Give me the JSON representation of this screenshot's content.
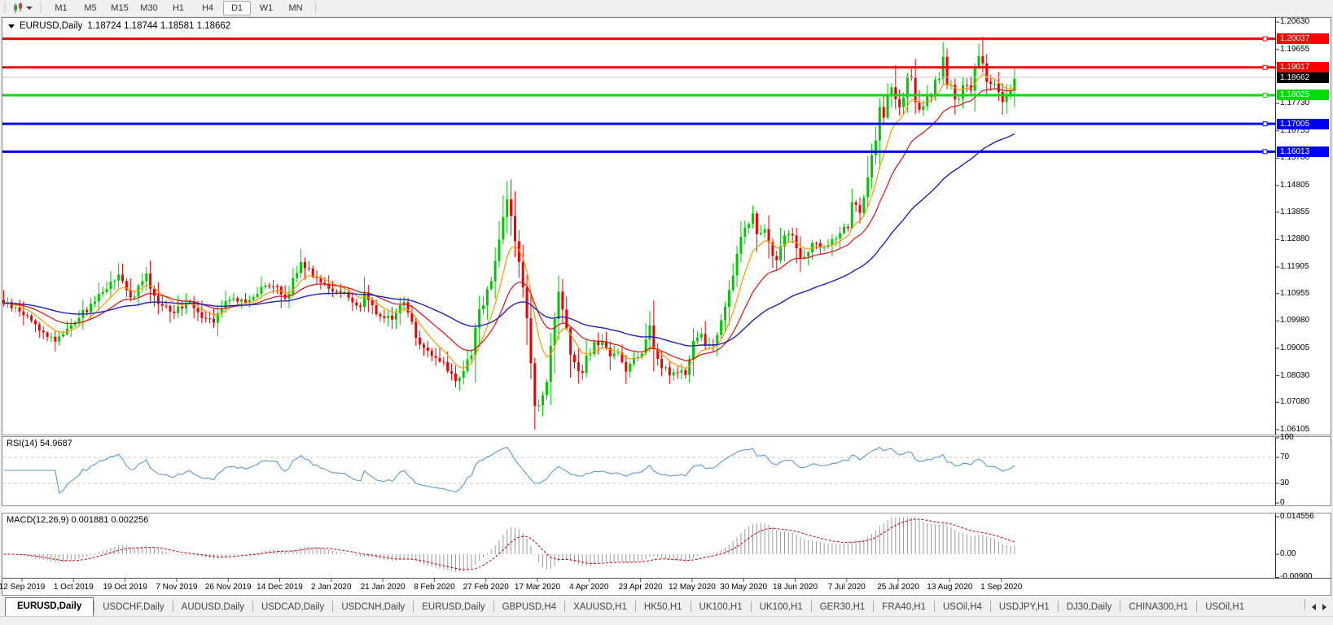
{
  "toolbar": {
    "timeframes": [
      {
        "label": "M1",
        "active": false
      },
      {
        "label": "M5",
        "active": false
      },
      {
        "label": "M15",
        "active": false
      },
      {
        "label": "M30",
        "active": false
      },
      {
        "label": "H1",
        "active": false
      },
      {
        "label": "H4",
        "active": false
      },
      {
        "label": "D1",
        "active": true
      },
      {
        "label": "W1",
        "active": false
      },
      {
        "label": "MN",
        "active": false
      }
    ]
  },
  "chart": {
    "symbol_title": "EURUSD,Daily",
    "ohlc_text": "1.18724 1.18744 1.18581 1.18662",
    "rsi_title": "RSI(14) 54.9687",
    "macd_title": "MACD(12,26,9) 0.001881 0.002256"
  },
  "chart_data": {
    "type": "candlestick",
    "symbol": "EURUSD",
    "timeframe": "Daily",
    "ohlc_display": {
      "open": "1.18724",
      "high": "1.18744",
      "low": "1.18581",
      "close": "1.18662"
    },
    "ylim": [
      1.06105,
      1.2063
    ],
    "price_axis_ticks": [
      {
        "label": "1.20630",
        "price": 1.2063
      },
      {
        "label": "1.19655",
        "price": 1.19655
      },
      {
        "label": "1.17730",
        "price": 1.1773
      },
      {
        "label": "1.16755",
        "price": 1.16755
      },
      {
        "label": "1.15780",
        "price": 1.1578
      },
      {
        "label": "1.14805",
        "price": 1.14805
      },
      {
        "label": "1.13855",
        "price": 1.13855
      },
      {
        "label": "1.12880",
        "price": 1.1288
      },
      {
        "label": "1.11905",
        "price": 1.11905
      },
      {
        "label": "1.10955",
        "price": 1.10955
      },
      {
        "label": "1.09980",
        "price": 1.0998
      },
      {
        "label": "1.09005",
        "price": 1.09005
      },
      {
        "label": "1.08030",
        "price": 1.0803
      },
      {
        "label": "1.07080",
        "price": 1.0708
      },
      {
        "label": "1.06105",
        "price": 1.06105
      }
    ],
    "horizontal_lines": [
      {
        "label": "1.20037",
        "price": 1.20037,
        "color_key": "red_line"
      },
      {
        "label": "1.19017",
        "price": 1.19017,
        "color_key": "red_line"
      },
      {
        "label": "1.18025",
        "price": 1.18025,
        "color_key": "green_line"
      },
      {
        "label": "1.17005",
        "price": 1.17005,
        "color_key": "blue_line"
      },
      {
        "label": "1.16013",
        "price": 1.16013,
        "color_key": "blue_line"
      }
    ],
    "current_price": {
      "label": "1.18662",
      "price": 1.18662
    },
    "x_labels": [
      "12 Sep 2019",
      "1 Oct 2019",
      "19 Oct 2019",
      "7 Nov 2019",
      "26 Nov 2019",
      "14 Dec 2019",
      "2 Jan 2020",
      "21 Jan 2020",
      "8 Feb 2020",
      "27 Feb 2020",
      "17 Mar 2020",
      "4 Apr 2020",
      "23 Apr 2020",
      "12 May 2020",
      "30 May 2020",
      "18 Jun 2020",
      "7 Jul 2020",
      "25 Jul 2020",
      "13 Aug 2020",
      "1 Sep 2020"
    ],
    "bars_per_label_interval": 13,
    "num_bars": 256,
    "close_anchors": [
      [
        0,
        1.1065
      ],
      [
        6,
        1.1015
      ],
      [
        10,
        1.0955
      ],
      [
        13,
        1.093
      ],
      [
        17,
        1.0985
      ],
      [
        21,
        1.104
      ],
      [
        26,
        1.112
      ],
      [
        29,
        1.1155
      ],
      [
        32,
        1.108
      ],
      [
        36,
        1.115
      ],
      [
        39,
        1.1065
      ],
      [
        43,
        1.103
      ],
      [
        47,
        1.1075
      ],
      [
        50,
        1.1015
      ],
      [
        53,
        1.1005
      ],
      [
        57,
        1.108
      ],
      [
        61,
        1.1065
      ],
      [
        65,
        1.1115
      ],
      [
        68,
        1.1125
      ],
      [
        71,
        1.108
      ],
      [
        75,
        1.121
      ],
      [
        78,
        1.1165
      ],
      [
        82,
        1.1115
      ],
      [
        86,
        1.1095
      ],
      [
        89,
        1.1035
      ],
      [
        91,
        1.1095
      ],
      [
        94,
        1.1025
      ],
      [
        98,
        1.1005
      ],
      [
        101,
        1.1075
      ],
      [
        104,
        1.0945
      ],
      [
        108,
        1.087
      ],
      [
        111,
        1.084
      ],
      [
        114,
        1.079
      ],
      [
        116,
        1.081
      ],
      [
        118,
        1.0885
      ],
      [
        120,
        1.1035
      ],
      [
        123,
        1.1135
      ],
      [
        125,
        1.1285
      ],
      [
        127,
        1.145
      ],
      [
        128,
        1.138
      ],
      [
        129,
        1.1284
      ],
      [
        131,
        1.11
      ],
      [
        132,
        1.0995
      ],
      [
        133,
        1.086
      ],
      [
        134,
        1.069
      ],
      [
        136,
        1.073
      ],
      [
        137,
        1.079
      ],
      [
        138,
        1.089
      ],
      [
        140,
        1.109
      ],
      [
        141,
        1.103
      ],
      [
        143,
        1.088
      ],
      [
        145,
        1.08
      ],
      [
        147,
        1.086
      ],
      [
        149,
        1.092
      ],
      [
        151,
        1.0915
      ],
      [
        153,
        1.087
      ],
      [
        155,
        1.089
      ],
      [
        157,
        1.0822
      ],
      [
        159,
        1.087
      ],
      [
        161,
        1.088
      ],
      [
        163,
        1.098
      ],
      [
        164,
        1.09
      ],
      [
        166,
        1.084
      ],
      [
        168,
        1.0805
      ],
      [
        170,
        1.0815
      ],
      [
        172,
        1.082
      ],
      [
        174,
        1.092
      ],
      [
        176,
        1.095
      ],
      [
        178,
        1.09
      ],
      [
        180,
        1.095
      ],
      [
        181,
        1.1
      ],
      [
        183,
        1.11
      ],
      [
        185,
        1.123
      ],
      [
        187,
        1.1337
      ],
      [
        189,
        1.1373
      ],
      [
        190,
        1.1301
      ],
      [
        192,
        1.1324
      ],
      [
        194,
        1.1243
      ],
      [
        195,
        1.1206
      ],
      [
        197,
        1.1308
      ],
      [
        199,
        1.131
      ],
      [
        201,
        1.122
      ],
      [
        203,
        1.125
      ],
      [
        205,
        1.128
      ],
      [
        207,
        1.125
      ],
      [
        209,
        1.128
      ],
      [
        211,
        1.13
      ],
      [
        213,
        1.134
      ],
      [
        214,
        1.1412
      ],
      [
        216,
        1.139
      ],
      [
        218,
        1.1525
      ],
      [
        219,
        1.157
      ],
      [
        220,
        1.1656
      ],
      [
        221,
        1.1752
      ],
      [
        222,
        1.1738
      ],
      [
        223,
        1.1791
      ],
      [
        224,
        1.1846
      ],
      [
        225,
        1.1778
      ],
      [
        226,
        1.1762
      ],
      [
        227,
        1.1803
      ],
      [
        228,
        1.1873
      ],
      [
        229,
        1.1876
      ],
      [
        230,
        1.1787
      ],
      [
        231,
        1.1738
      ],
      [
        233,
        1.1782
      ],
      [
        234,
        1.1813
      ],
      [
        235,
        1.1842
      ],
      [
        236,
        1.187
      ],
      [
        237,
        1.1933
      ],
      [
        238,
        1.1839
      ],
      [
        239,
        1.1859
      ],
      [
        240,
        1.1796
      ],
      [
        241,
        1.1787
      ],
      [
        242,
        1.1834
      ],
      [
        243,
        1.183
      ],
      [
        244,
        1.1822
      ],
      [
        245,
        1.1903
      ],
      [
        246,
        1.1936
      ],
      [
        247,
        1.1911
      ],
      [
        248,
        1.1854
      ],
      [
        249,
        1.1851
      ],
      [
        250,
        1.1838
      ],
      [
        251,
        1.1815
      ],
      [
        252,
        1.1776
      ],
      [
        253,
        1.1802
      ],
      [
        254,
        1.1815
      ],
      [
        255,
        1.1866
      ]
    ],
    "high_overrides": {
      "127": 1.1495,
      "225": 1.1909,
      "247": 1.2011
    },
    "low_overrides": {
      "114": 1.0778,
      "134": 1.0636
    },
    "moving_averages": [
      {
        "name": "fast",
        "period": 8,
        "color_key": "ma_fast"
      },
      {
        "name": "mid",
        "period": 20,
        "color_key": "ma_mid"
      },
      {
        "name": "slow",
        "period": 55,
        "color_key": "ma_slow"
      }
    ],
    "indicators": {
      "rsi": {
        "period": 14,
        "current": 54.9687,
        "levels": [
          70,
          30
        ],
        "range": [
          0,
          100
        ],
        "axis": [
          {
            "label": "100",
            "v": 100
          },
          {
            "label": "70",
            "v": 70
          },
          {
            "label": "30",
            "v": 30
          },
          {
            "label": "0",
            "v": 0
          }
        ]
      },
      "macd": {
        "fast": 12,
        "slow": 26,
        "signal": 9,
        "current_macd": 0.001881,
        "current_signal": 0.002256,
        "axis": [
          {
            "label": "0.014556",
            "v": 0.014556
          },
          {
            "label": "0.00",
            "v": 0
          },
          {
            "label": "-0.00900",
            "v": -0.009
          }
        ]
      }
    }
  },
  "colors": {
    "red_line": "#ff0000",
    "green_line": "#00dc00",
    "blue_line": "#0000f0",
    "up": "#00c800",
    "down": "#ee0000",
    "ma_fast": "#ff9900",
    "ma_mid": "#dd1111",
    "ma_slow": "#2121bb",
    "rsi": "#5b9bd5",
    "level_dash": "#c8c8c8",
    "macd_hist": "#9a9a9a",
    "macd_signal": "#cc0000",
    "price_line": "#c8c8c8",
    "current_badge_bg": "#000000"
  },
  "tabs": {
    "items": [
      {
        "label": "EURUSD,Daily",
        "active": true
      },
      {
        "label": "USDCHF,Daily",
        "active": false
      },
      {
        "label": "AUDUSD,Daily",
        "active": false
      },
      {
        "label": "USDCAD,Daily",
        "active": false
      },
      {
        "label": "USDCNH,Daily",
        "active": false
      },
      {
        "label": "EURUSD,Daily",
        "active": false
      },
      {
        "label": "GBPUSD,H4",
        "active": false
      },
      {
        "label": "XAUUSD,H1",
        "active": false
      },
      {
        "label": "HK50,H1",
        "active": false
      },
      {
        "label": "UK100,H1",
        "active": false
      },
      {
        "label": "UK100,H1",
        "active": false
      },
      {
        "label": "GER30,H1",
        "active": false
      },
      {
        "label": "FRA40,H1",
        "active": false
      },
      {
        "label": "USOil,H4",
        "active": false
      },
      {
        "label": "USDJPY,H1",
        "active": false
      },
      {
        "label": "DJ30,Daily",
        "active": false
      },
      {
        "label": "CHINA300,H1",
        "active": false
      },
      {
        "label": "USOil,H1",
        "active": false
      }
    ]
  }
}
